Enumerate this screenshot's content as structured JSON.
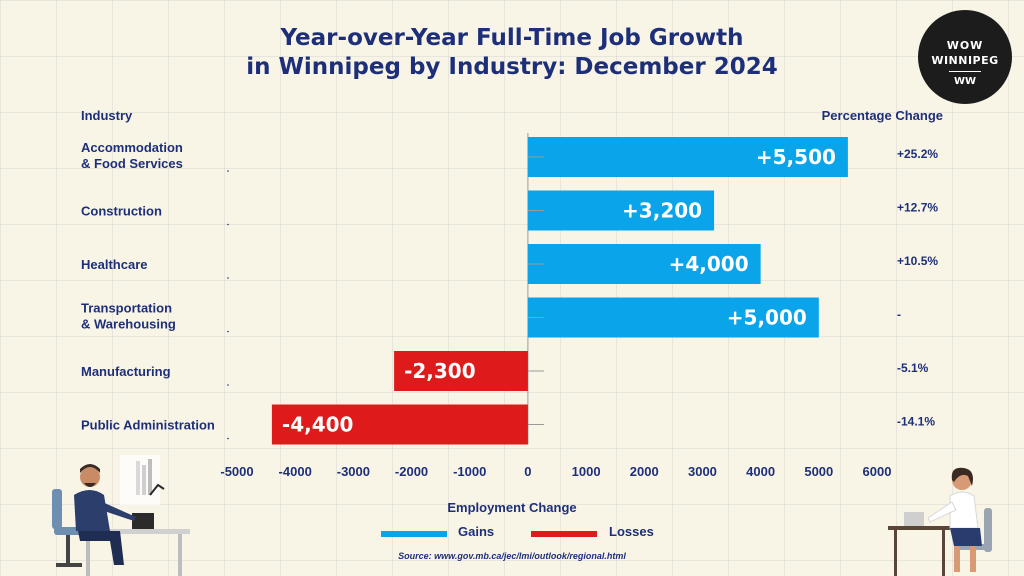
{
  "title_line1": "Year-over-Year Full-Time Job Growth",
  "title_line2": "in Winnipeg by Industry: December 2024",
  "logo": {
    "line1": "WOW",
    "line2": "WINNIPEG",
    "line3": "WW"
  },
  "column_headers": {
    "industry": "Industry",
    "percentage": "Percentage Change"
  },
  "x_axis_title": "Employment Change",
  "legend": {
    "gains": "Gains",
    "losses": "Losses"
  },
  "source": "Source: www.gov.mb.ca/jec/lmi/outlook/regional.html",
  "colors": {
    "gains": "#0aa4ea",
    "losses": "#df1a1a",
    "text": "#1e2f7a",
    "background": "#f8f5e7"
  },
  "icons": [
    "man-at-desk-illustration",
    "woman-at-desk-illustration",
    "wow-winnipeg-logo"
  ],
  "chart_data": {
    "type": "bar",
    "orientation": "horizontal",
    "categories": [
      [
        "Accommodation",
        "& Food Services"
      ],
      [
        "Construction"
      ],
      [
        "Healthcare"
      ],
      [
        "Transportation",
        "& Warehousing"
      ],
      [
        "Manufacturing"
      ],
      [
        "Public Administration"
      ]
    ],
    "values": [
      5500,
      3200,
      4000,
      5000,
      -2300,
      -4400
    ],
    "data_labels": [
      "+5,500",
      "+3,200",
      "+4,000",
      "+5,000",
      "-2,300",
      "-4,400"
    ],
    "percentage_change": [
      "+25.2%",
      "+12.7%",
      "+10.5%",
      "-",
      "-5.1%",
      "-14.1%"
    ],
    "xlabel": "Employment Change",
    "ylabel": "Industry",
    "xlim": [
      -5000,
      6000
    ],
    "xticks": [
      -5000,
      -4000,
      -3000,
      -2000,
      -1000,
      0,
      1000,
      2000,
      3000,
      4000,
      5000,
      6000
    ],
    "legend_position": "bottom"
  }
}
